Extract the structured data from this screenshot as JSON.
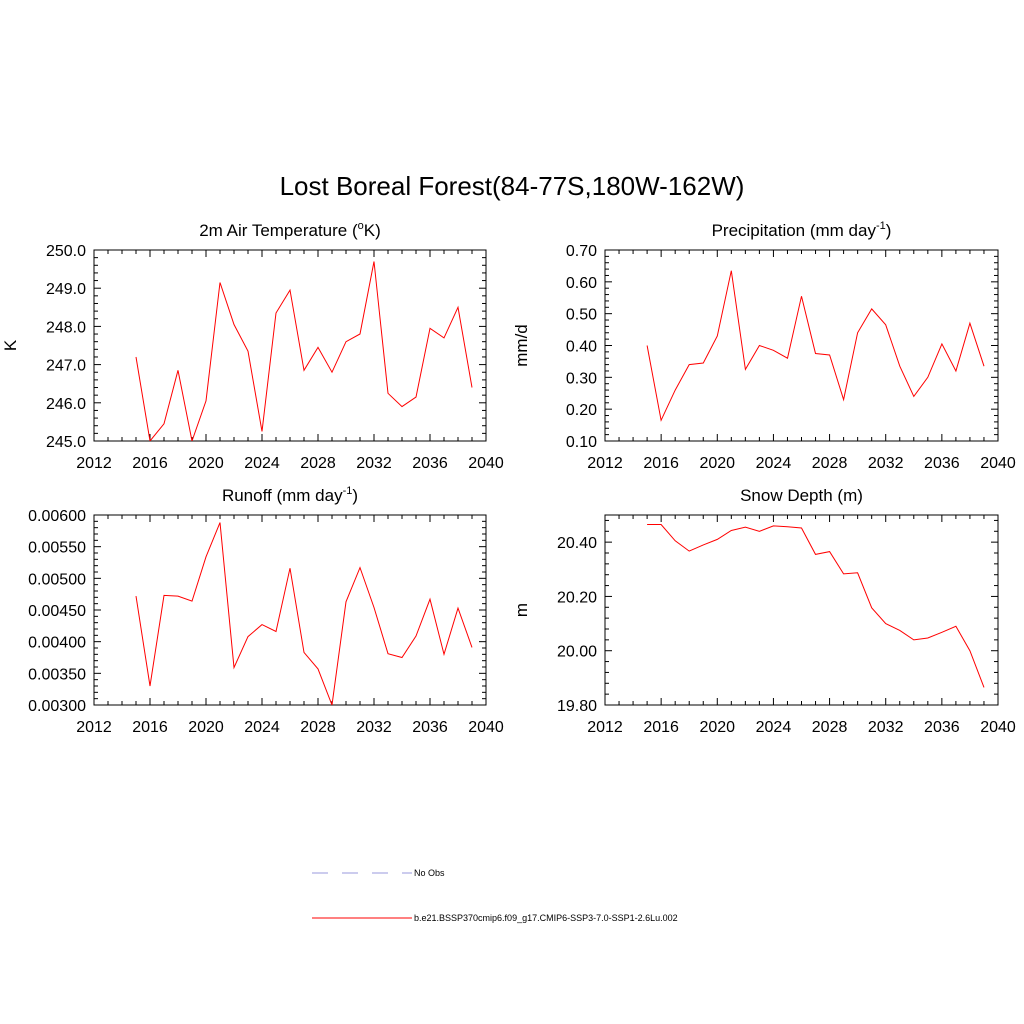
{
  "page_title": "Lost Boreal Forest(84-77S,180W-162W)",
  "colors": {
    "model_line": "#ff0000",
    "obs_line": "#9999dd",
    "axis": "#000000"
  },
  "legend": {
    "obs_label": "No Obs",
    "model_label": "b.e21.BSSP370cmip6.f09_g17.CMIP6-SSP3-7.0-SSP1-2.6Lu.002"
  },
  "chart_data": [
    {
      "type": "line",
      "title": "2m Air Temperature (",
      "title_sup": "o",
      "title_after": "K)",
      "ylabel": "K",
      "xlabel": "",
      "xlim": [
        2012,
        2040
      ],
      "ylim": [
        245.0,
        250.0
      ],
      "xticks": [
        "2012",
        "2016",
        "2020",
        "2024",
        "2028",
        "2032",
        "2036",
        "2040"
      ],
      "yticks": [
        "245.0",
        "246.0",
        "247.0",
        "248.0",
        "249.0",
        "250.0"
      ],
      "grid": false,
      "x": [
        2015,
        2016,
        2017,
        2018,
        2019,
        2020,
        2021,
        2022,
        2023,
        2024,
        2025,
        2026,
        2027,
        2028,
        2029,
        2030,
        2031,
        2032,
        2033,
        2034,
        2035,
        2036,
        2037,
        2038,
        2039
      ],
      "series": [
        {
          "values": [
            247.2,
            245.0,
            245.45,
            246.85,
            245.0,
            246.05,
            249.15,
            248.05,
            247.35,
            245.25,
            248.35,
            248.95,
            246.85,
            247.45,
            246.8,
            247.6,
            247.8,
            249.7,
            246.25,
            245.9,
            246.15,
            247.95,
            247.7,
            248.5,
            246.4
          ]
        }
      ]
    },
    {
      "type": "line",
      "title": "Precipitation (mm day",
      "title_sup": "-1",
      "title_after": ")",
      "ylabel": "mm/d",
      "xlabel": "",
      "xlim": [
        2012,
        2040
      ],
      "ylim": [
        0.1,
        0.7
      ],
      "xticks": [
        "2012",
        "2016",
        "2020",
        "2024",
        "2028",
        "2032",
        "2036",
        "2040"
      ],
      "yticks": [
        "0.10",
        "0.20",
        "0.30",
        "0.40",
        "0.50",
        "0.60",
        "0.70"
      ],
      "grid": false,
      "x": [
        2015,
        2016,
        2017,
        2018,
        2019,
        2020,
        2021,
        2022,
        2023,
        2024,
        2025,
        2026,
        2027,
        2028,
        2029,
        2030,
        2031,
        2032,
        2033,
        2034,
        2035,
        2036,
        2037,
        2038,
        2039
      ],
      "series": [
        {
          "values": [
            0.4,
            0.165,
            0.26,
            0.34,
            0.345,
            0.43,
            0.635,
            0.325,
            0.4,
            0.385,
            0.36,
            0.555,
            0.375,
            0.37,
            0.23,
            0.44,
            0.515,
            0.465,
            0.335,
            0.24,
            0.3,
            0.405,
            0.32,
            0.47,
            0.335
          ]
        }
      ]
    },
    {
      "type": "line",
      "title": "Runoff (mm day",
      "title_sup": "-1",
      "title_after": ")",
      "ylabel": "",
      "xlabel": "",
      "xlim": [
        2012,
        2040
      ],
      "ylim": [
        0.003,
        0.006
      ],
      "xticks": [
        "2012",
        "2016",
        "2020",
        "2024",
        "2028",
        "2032",
        "2036",
        "2040"
      ],
      "yticks": [
        "0.00300",
        "0.00350",
        "0.00400",
        "0.00450",
        "0.00500",
        "0.00550",
        "0.00600"
      ],
      "grid": false,
      "x": [
        2015,
        2016,
        2017,
        2018,
        2019,
        2020,
        2021,
        2022,
        2023,
        2024,
        2025,
        2026,
        2027,
        2028,
        2029,
        2030,
        2031,
        2032,
        2033,
        2034,
        2035,
        2036,
        2037,
        2038,
        2039
      ],
      "series": [
        {
          "values": [
            0.00472,
            0.0033,
            0.00473,
            0.00472,
            0.00464,
            0.00534,
            0.00588,
            0.00359,
            0.00408,
            0.00427,
            0.00416,
            0.00516,
            0.00383,
            0.00357,
            0.003,
            0.00463,
            0.00517,
            0.00454,
            0.00381,
            0.00375,
            0.00409,
            0.00467,
            0.0038,
            0.00453,
            0.00391
          ]
        }
      ]
    },
    {
      "type": "line",
      "title": "Snow Depth (m)",
      "title_sup": "",
      "title_after": "",
      "ylabel": "m",
      "xlabel": "",
      "xlim": [
        2012,
        2040
      ],
      "ylim": [
        19.8,
        20.5
      ],
      "xticks": [
        "2012",
        "2016",
        "2020",
        "2024",
        "2028",
        "2032",
        "2036",
        "2040"
      ],
      "yticks": [
        "19.80",
        "20.00",
        "20.20",
        "20.40"
      ],
      "grid": false,
      "x": [
        2015,
        2016,
        2017,
        2018,
        2019,
        2020,
        2021,
        2022,
        2023,
        2024,
        2025,
        2026,
        2027,
        2028,
        2029,
        2030,
        2031,
        2032,
        2033,
        2034,
        2035,
        2036,
        2037,
        2038,
        2039
      ],
      "series": [
        {
          "values": [
            20.465,
            20.465,
            20.405,
            20.367,
            20.39,
            20.41,
            20.443,
            20.455,
            20.44,
            20.46,
            20.457,
            20.452,
            20.355,
            20.365,
            20.283,
            20.287,
            20.158,
            20.1,
            20.075,
            20.04,
            20.047,
            20.068,
            20.09,
            20.0,
            19.865
          ]
        }
      ]
    }
  ]
}
